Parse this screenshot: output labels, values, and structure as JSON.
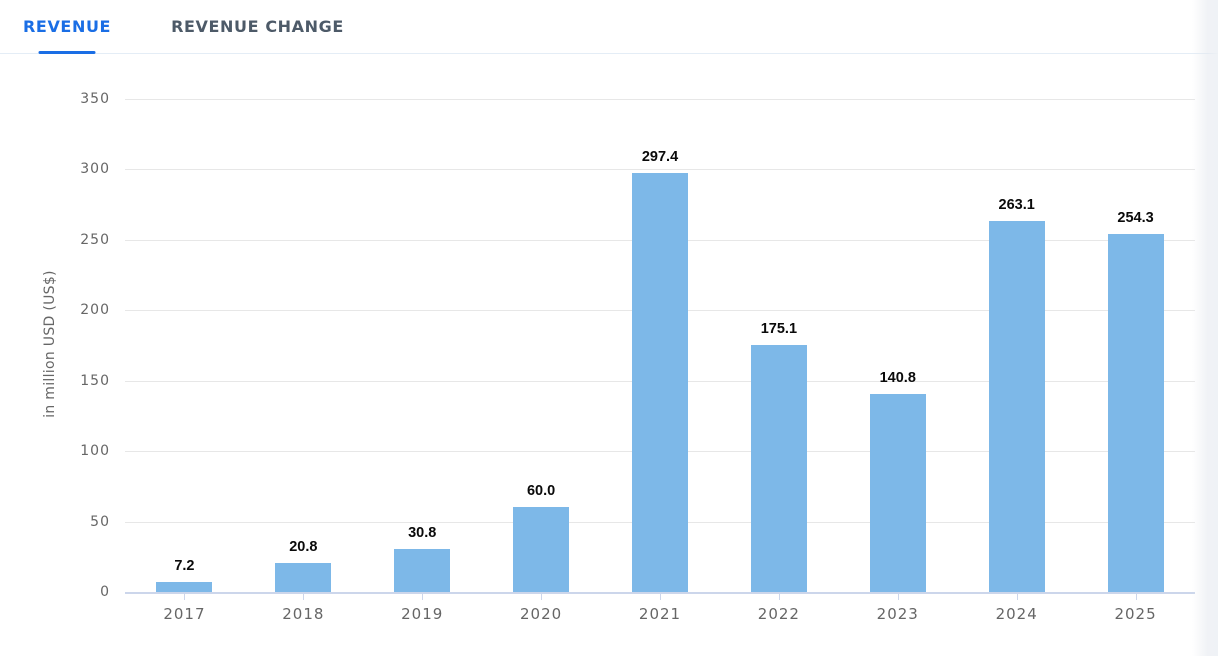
{
  "tabs": [
    {
      "label": "REVENUE",
      "active": true
    },
    {
      "label": "REVENUE CHANGE",
      "active": false
    }
  ],
  "colors": {
    "bar": "#7db8e8",
    "active_tab": "#1a6ee5",
    "inactive_tab": "#4d5a68",
    "gridline": "#e7e7e7",
    "axis_line": "#ccd6eb",
    "tick_label": "#666666",
    "data_label": "#0a0a0a"
  },
  "chart_data": {
    "type": "bar",
    "title": "",
    "xlabel": "",
    "ylabel": "in million USD (US$)",
    "categories": [
      "2017",
      "2018",
      "2019",
      "2020",
      "2021",
      "2022",
      "2023",
      "2024",
      "2025"
    ],
    "values": [
      7.2,
      20.8,
      30.8,
      60.0,
      297.4,
      175.1,
      140.8,
      263.1,
      254.3
    ],
    "data_labels": [
      "7.2",
      "20.8",
      "30.8",
      "60.0",
      "297.4",
      "175.1",
      "140.8",
      "263.1",
      "254.3"
    ],
    "ylim": [
      0,
      350
    ],
    "ytick_step": 50,
    "ytick_labels": [
      "0",
      "50",
      "100",
      "150",
      "200",
      "250",
      "300",
      "350"
    ],
    "grid": true,
    "legend": "none"
  }
}
